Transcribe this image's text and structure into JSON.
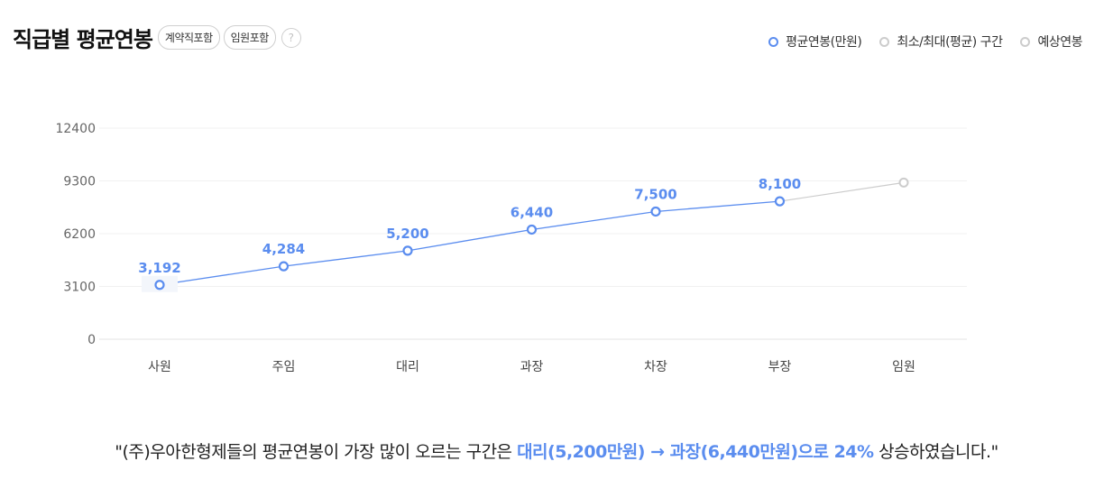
{
  "header": {
    "title": "직급별 평균연봉",
    "chips": [
      "계약직포함",
      "임원포함"
    ],
    "help_symbol": "?"
  },
  "legend": [
    {
      "label": "평균연봉(만원)",
      "color": "#5b8def"
    },
    {
      "label": "최소/최대(평균) 구간",
      "color": "#cccccc"
    },
    {
      "label": "예상연봉",
      "color": "#cccccc"
    }
  ],
  "chart_data": {
    "type": "line",
    "title": "직급별 평균연봉",
    "categories": [
      "사원",
      "주임",
      "대리",
      "과장",
      "차장",
      "부장",
      "임원"
    ],
    "series": [
      {
        "name": "평균연봉(만원)",
        "values": [
          3192,
          4284,
          5200,
          6440,
          7500,
          8100,
          null
        ],
        "labels": [
          "3,192",
          "4,284",
          "5,200",
          "6,440",
          "7,500",
          "8,100",
          ""
        ],
        "color": "#5b8def"
      },
      {
        "name": "예상연봉",
        "values": [
          null,
          null,
          null,
          null,
          null,
          8100,
          9200
        ],
        "color": "#cccccc"
      }
    ],
    "yticks": [
      0,
      3100,
      6200,
      9300,
      12400
    ],
    "ylim": [
      0,
      12400
    ],
    "grid": true
  },
  "summary": {
    "pre": "\"(주)우아한형제들의 평균연봉이 가장 많이 오르는 구간은 ",
    "highlight": "대리(5,200만원) → 과장(6,440만원)으로 24%",
    "post": " 상승하였습니다.\""
  }
}
